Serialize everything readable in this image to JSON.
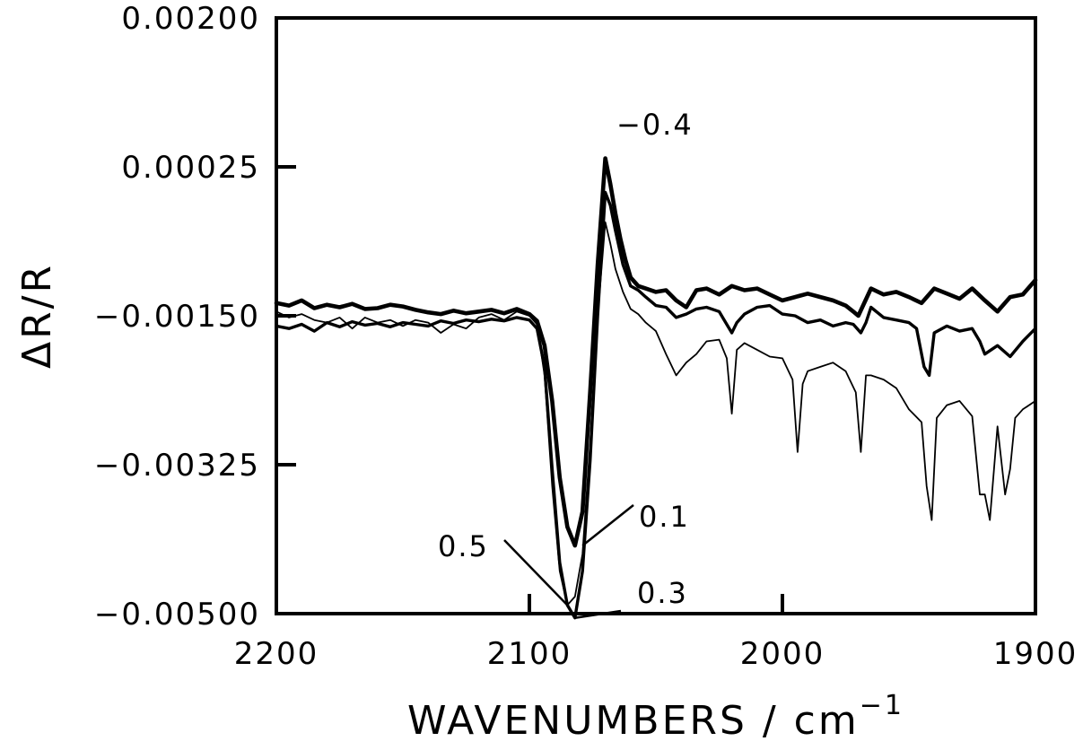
{
  "chart_data": {
    "type": "line",
    "xlabel": "WAVENUMBERS / cm",
    "xlabel_superscript": "−1",
    "ylabel": "ΔR/R",
    "xlim": [
      2200,
      1900
    ],
    "ylim": [
      -0.005,
      0.002
    ],
    "x_reversed": true,
    "x_ticks": [
      2200,
      2100,
      2000,
      1900
    ],
    "x_tick_labels": [
      "2200",
      "2100",
      "2000",
      "1900"
    ],
    "y_ticks": [
      0.002,
      0.00025,
      -0.0015,
      -0.00325,
      -0.005
    ],
    "y_tick_labels": [
      "0.00200",
      "0.00025",
      "−0.00150",
      "−0.00325",
      "−0.00500"
    ],
    "grid": false,
    "legend": "none",
    "series": [
      {
        "name": "0.1",
        "x": [
          2200,
          2195,
          2190,
          2185,
          2180,
          2175,
          2170,
          2165,
          2160,
          2155,
          2150,
          2145,
          2140,
          2135,
          2130,
          2125,
          2120,
          2115,
          2110,
          2105,
          2100,
          2097,
          2094,
          2091,
          2088,
          2085,
          2082,
          2079,
          2076,
          2073,
          2070,
          2068,
          2066,
          2064,
          2062,
          2060,
          2057,
          2054,
          2050,
          2046,
          2042,
          2038,
          2034,
          2030,
          2025,
          2020,
          2015,
          2010,
          2005,
          2000,
          1995,
          1990,
          1985,
          1980,
          1975,
          1972,
          1970,
          1965,
          1960,
          1955,
          1950,
          1945,
          1940,
          1935,
          1930,
          1925,
          1920,
          1915,
          1910,
          1905,
          1900
        ],
        "y": [
          -0.00135,
          -0.00138,
          -0.00132,
          -0.00141,
          -0.00137,
          -0.0014,
          -0.00136,
          -0.00142,
          -0.00141,
          -0.00137,
          -0.00139,
          -0.00143,
          -0.00146,
          -0.00148,
          -0.00144,
          -0.00147,
          -0.00145,
          -0.00143,
          -0.00147,
          -0.00142,
          -0.00148,
          -0.00156,
          -0.00185,
          -0.0025,
          -0.0034,
          -0.00398,
          -0.0042,
          -0.0038,
          -0.0024,
          -0.0009,
          0.00035,
          5e-05,
          -0.0003,
          -0.0006,
          -0.00085,
          -0.00105,
          -0.00115,
          -0.00118,
          -0.00122,
          -0.0012,
          -0.00132,
          -0.0014,
          -0.0012,
          -0.00118,
          -0.00125,
          -0.00115,
          -0.0012,
          -0.00118,
          -0.00125,
          -0.00132,
          -0.00128,
          -0.00124,
          -0.00128,
          -0.00132,
          -0.00138,
          -0.00145,
          -0.0015,
          -0.00118,
          -0.00125,
          -0.00122,
          -0.00128,
          -0.00135,
          -0.00118,
          -0.00124,
          -0.0013,
          -0.00118,
          -0.00132,
          -0.00145,
          -0.00128,
          -0.00125,
          -0.00108
        ]
      },
      {
        "name": "0.3",
        "x": [
          2200,
          2195,
          2190,
          2185,
          2180,
          2175,
          2170,
          2165,
          2160,
          2155,
          2150,
          2145,
          2140,
          2135,
          2130,
          2125,
          2120,
          2115,
          2110,
          2105,
          2100,
          2097,
          2094,
          2091,
          2088,
          2085,
          2082,
          2079,
          2076,
          2073,
          2070,
          2068,
          2066,
          2063,
          2060,
          2057,
          2054,
          2050,
          2046,
          2042,
          2038,
          2034,
          2030,
          2025,
          2023,
          2020,
          2018,
          2015,
          2010,
          2005,
          2000,
          1995,
          1990,
          1985,
          1980,
          1975,
          1972,
          1969,
          1967,
          1965,
          1960,
          1955,
          1950,
          1947,
          1944,
          1942,
          1940,
          1935,
          1930,
          1925,
          1922,
          1920,
          1915,
          1910,
          1905,
          1900
        ],
        "y": [
          -0.00162,
          -0.00165,
          -0.0016,
          -0.00168,
          -0.00158,
          -0.00163,
          -0.00157,
          -0.00161,
          -0.00159,
          -0.00163,
          -0.00158,
          -0.0016,
          -0.00162,
          -0.00156,
          -0.00159,
          -0.00155,
          -0.00157,
          -0.00154,
          -0.00156,
          -0.00152,
          -0.00155,
          -0.00165,
          -0.0021,
          -0.0033,
          -0.0044,
          -0.0049,
          -0.00505,
          -0.0045,
          -0.0032,
          -0.0015,
          -5e-05,
          -0.0002,
          -0.0005,
          -0.0009,
          -0.00115,
          -0.0012,
          -0.00128,
          -0.00138,
          -0.0014,
          -0.00152,
          -0.00148,
          -0.00142,
          -0.0014,
          -0.00145,
          -0.00155,
          -0.0017,
          -0.00158,
          -0.00148,
          -0.0014,
          -0.00138,
          -0.00148,
          -0.0015,
          -0.00158,
          -0.00155,
          -0.00162,
          -0.00158,
          -0.0016,
          -0.0017,
          -0.00158,
          -0.0014,
          -0.00152,
          -0.00155,
          -0.00158,
          -0.00165,
          -0.0021,
          -0.0022,
          -0.0017,
          -0.00162,
          -0.00168,
          -0.00165,
          -0.0018,
          -0.00195,
          -0.00185,
          -0.00198,
          -0.0018,
          -0.00165
        ]
      },
      {
        "name": "0.5",
        "x": [
          2200,
          2195,
          2190,
          2185,
          2180,
          2175,
          2170,
          2165,
          2160,
          2155,
          2150,
          2145,
          2140,
          2135,
          2130,
          2125,
          2120,
          2115,
          2110,
          2105,
          2100,
          2097,
          2094,
          2091,
          2088,
          2085,
          2082,
          2079,
          2076,
          2073,
          2070,
          2068,
          2066,
          2063,
          2060,
          2057,
          2054,
          2050,
          2046,
          2042,
          2038,
          2034,
          2030,
          2025,
          2022,
          2020,
          2018,
          2015,
          2010,
          2005,
          2000,
          1996,
          1994,
          1992,
          1990,
          1985,
          1980,
          1975,
          1971,
          1969,
          1967,
          1965,
          1960,
          1955,
          1950,
          1945,
          1943,
          1941,
          1939,
          1935,
          1930,
          1925,
          1922,
          1920,
          1918,
          1915,
          1912,
          1910,
          1908,
          1905,
          1900
        ],
        "y": [
          -0.00145,
          -0.00152,
          -0.00148,
          -0.00155,
          -0.00158,
          -0.00152,
          -0.00165,
          -0.00152,
          -0.00158,
          -0.00155,
          -0.00162,
          -0.00155,
          -0.00158,
          -0.0017,
          -0.0016,
          -0.00165,
          -0.00152,
          -0.00148,
          -0.00155,
          -0.00145,
          -0.0015,
          -0.0016,
          -0.0022,
          -0.0035,
          -0.0045,
          -0.0049,
          -0.0048,
          -0.0043,
          -0.003,
          -0.0015,
          -0.0004,
          -0.00065,
          -0.00095,
          -0.00122,
          -0.00142,
          -0.00148,
          -0.00158,
          -0.00168,
          -0.00195,
          -0.0022,
          -0.00205,
          -0.00195,
          -0.0018,
          -0.00178,
          -0.002,
          -0.00265,
          -0.0019,
          -0.00182,
          -0.0019,
          -0.00198,
          -0.002,
          -0.00225,
          -0.0031,
          -0.0023,
          -0.00215,
          -0.0021,
          -0.00205,
          -0.00215,
          -0.0024,
          -0.0031,
          -0.0022,
          -0.0022,
          -0.00225,
          -0.00235,
          -0.0026,
          -0.00275,
          -0.0035,
          -0.0039,
          -0.0027,
          -0.00255,
          -0.0025,
          -0.00268,
          -0.0036,
          -0.0036,
          -0.0039,
          -0.0028,
          -0.0036,
          -0.0033,
          -0.0027,
          -0.0026,
          -0.0025
        ]
      }
    ],
    "annotations": [
      {
        "text": "−0.4",
        "target_x": 2069,
        "target_y": 0.00035
      },
      {
        "text": "0.1",
        "target_x": 2079,
        "target_y": -0.0042
      },
      {
        "text": "0.5",
        "target_x": 2085,
        "target_y": -0.0049
      },
      {
        "text": "0.3",
        "target_x": 2082,
        "target_y": -0.00505
      }
    ]
  }
}
